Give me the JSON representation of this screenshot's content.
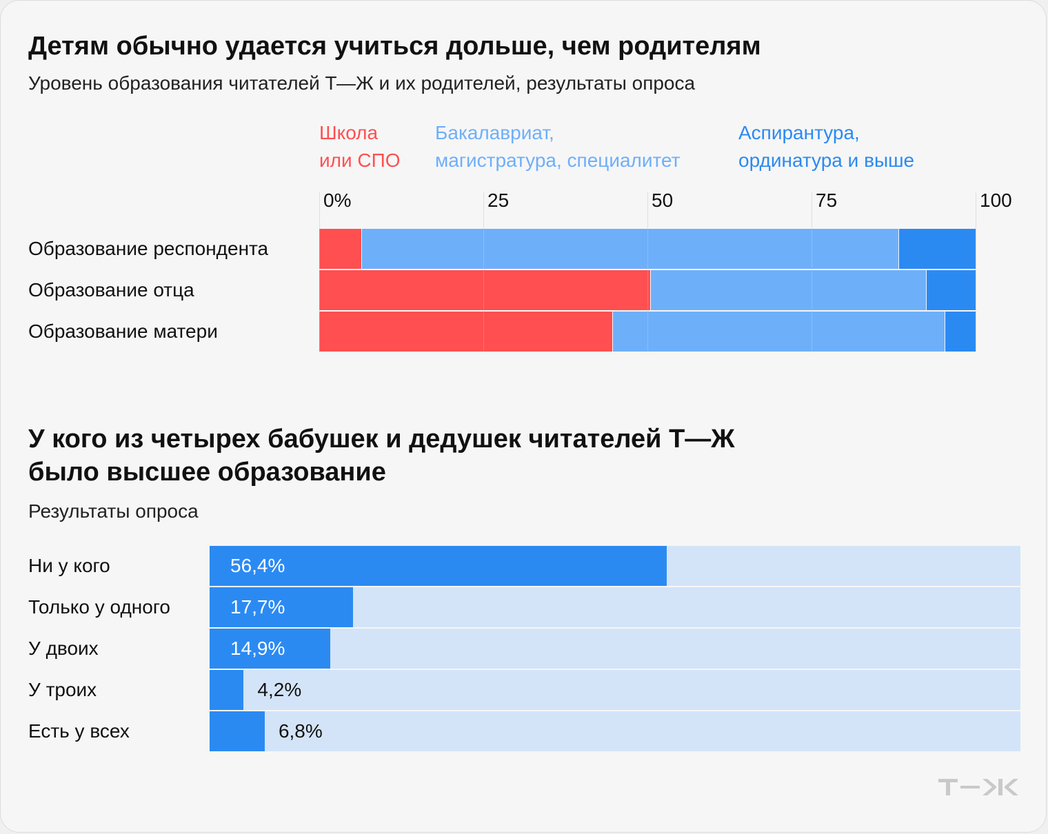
{
  "chart1": {
    "title": "Детям обычно удается учиться дольше, чем родителям",
    "subtitle": "Уровень образования читателей Т—Ж и их родителей, результаты опроса",
    "colors": {
      "school": "#ff4f50",
      "bachelor": "#6eaffa",
      "postgrad": "#2b8af2"
    },
    "chart_data": {
      "type": "bar",
      "orientation": "horizontal",
      "stacked": true,
      "title": "Детям обычно удается учиться дольше, чем родителям",
      "subtitle": "Уровень образования читателей Т—Ж и их родителей, результаты опроса",
      "categories": [
        "Образование респондента",
        "Образование отца",
        "Образование матери"
      ],
      "series": [
        {
          "name": "Школа\nили СПО",
          "values": [
            6.5,
            50.5,
            44.8
          ]
        },
        {
          "name": "Бакалавриат,\nмагистратура, специалитет",
          "values": [
            81.8,
            42.0,
            50.6
          ]
        },
        {
          "name": "Аспирантура,\nординатура и выше",
          "values": [
            11.7,
            7.5,
            4.6
          ]
        }
      ],
      "xlim": [
        0,
        100
      ],
      "xticks": [
        "0%",
        "25",
        "50",
        "75",
        "100"
      ],
      "grid": true,
      "legend": "top"
    }
  },
  "chart2": {
    "title": "У кого из четырех бабушек и дедушек читателей Т—Ж\nбыло высшее образование",
    "subtitle": "Результаты опроса",
    "colors": {
      "fill": "#2b8af2",
      "track": "#d3e4f8"
    },
    "chart_data": {
      "type": "bar",
      "orientation": "horizontal",
      "title": "У кого из четырех бабушек и дедушек читателей Т—Ж было высшее образование",
      "subtitle": "Результаты опроса",
      "categories": [
        "Ни у кого",
        "Только у одного",
        "У двоих",
        "У троих",
        "Есть у всех"
      ],
      "values": [
        56.4,
        17.7,
        14.9,
        4.2,
        6.8
      ],
      "labels": [
        "56,4%",
        "17,7%",
        "14,9%",
        "4,2%",
        "6,8%"
      ],
      "xlim": [
        0,
        100
      ]
    }
  },
  "brand": {
    "logo_text": "Т—Ж"
  }
}
